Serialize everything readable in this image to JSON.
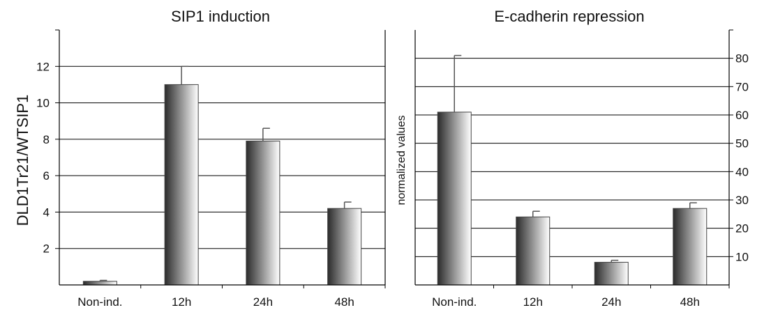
{
  "chart_data": [
    {
      "type": "bar",
      "title": "SIP1 induction",
      "ylabel": "DLD1Tr21/WTSIP1",
      "xlabel": "",
      "categories": [
        "Non-ind.",
        "12h",
        "24h",
        "48h"
      ],
      "values": [
        0.2,
        11.0,
        7.9,
        4.2
      ],
      "errors": [
        0.05,
        1.0,
        0.7,
        0.35
      ],
      "ylim": [
        0,
        14
      ],
      "yticks": [
        2,
        4,
        6,
        8,
        10,
        12
      ],
      "y_axis_side": "left",
      "grid": true,
      "legend": "none"
    },
    {
      "type": "bar",
      "title": "E-cadherin repression",
      "ylabel": "normalized values",
      "xlabel": "",
      "categories": [
        "Non-ind.",
        "12h",
        "24h",
        "48h"
      ],
      "values": [
        61,
        24,
        8,
        27
      ],
      "errors": [
        20,
        2,
        0.7,
        2
      ],
      "ylim": [
        0,
        90
      ],
      "yticks": [
        10,
        20,
        30,
        40,
        50,
        60,
        70,
        80
      ],
      "y_axis_side": "right",
      "grid": true,
      "legend": "none"
    }
  ],
  "style": {
    "bar_dark": "#2b2b2b",
    "bar_light": "#ffffff",
    "axis_color": "#000000",
    "grid_color": "#000000"
  }
}
